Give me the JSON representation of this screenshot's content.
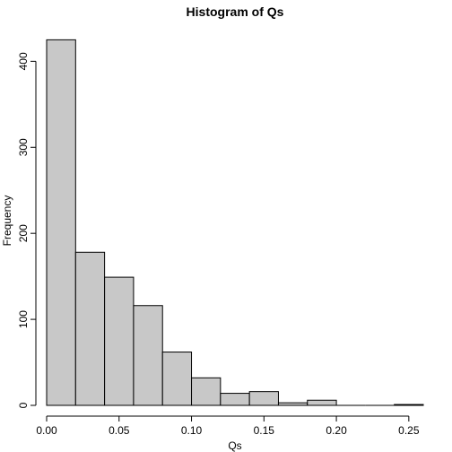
{
  "chart_data": {
    "type": "bar",
    "title": "Histogram of Qs",
    "xlabel": "Qs",
    "ylabel": "Frequency",
    "bin_width": 0.02,
    "bins": [
      {
        "start": 0.0,
        "end": 0.02,
        "count": 425
      },
      {
        "start": 0.02,
        "end": 0.04,
        "count": 178
      },
      {
        "start": 0.04,
        "end": 0.06,
        "count": 149
      },
      {
        "start": 0.06,
        "end": 0.08,
        "count": 116
      },
      {
        "start": 0.08,
        "end": 0.1,
        "count": 62
      },
      {
        "start": 0.1,
        "end": 0.12,
        "count": 32
      },
      {
        "start": 0.12,
        "end": 0.14,
        "count": 14
      },
      {
        "start": 0.14,
        "end": 0.16,
        "count": 16
      },
      {
        "start": 0.16,
        "end": 0.18,
        "count": 3
      },
      {
        "start": 0.18,
        "end": 0.2,
        "count": 6
      },
      {
        "start": 0.2,
        "end": 0.22,
        "count": 0
      },
      {
        "start": 0.22,
        "end": 0.24,
        "count": 0
      },
      {
        "start": 0.24,
        "end": 0.26,
        "count": 1
      }
    ],
    "xlim": [
      0,
      0.26
    ],
    "ylim": [
      0,
      440
    ],
    "x_ticks": [
      0.0,
      0.05,
      0.1,
      0.15,
      0.2,
      0.25
    ],
    "x_tick_labels": [
      "0.00",
      "0.05",
      "0.10",
      "0.15",
      "0.20",
      "0.25"
    ],
    "y_ticks": [
      0,
      100,
      200,
      300,
      400
    ],
    "y_tick_labels": [
      "0",
      "100",
      "200",
      "300",
      "400"
    ],
    "bar_fill": "#c8c8c8",
    "grid": false,
    "legend": "none"
  }
}
